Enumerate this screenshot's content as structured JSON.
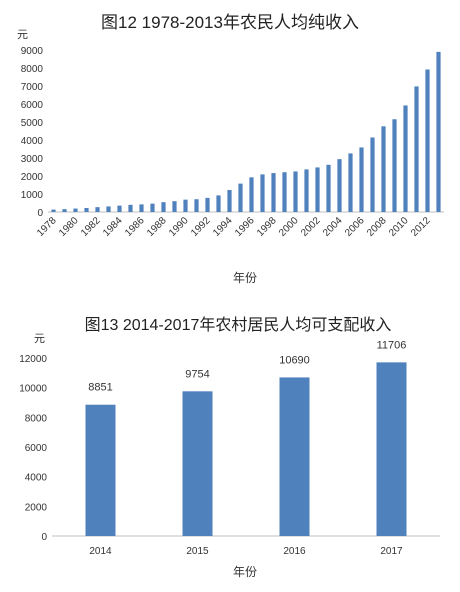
{
  "charts": [
    {
      "title": "图12  1978-2013年农民人均纯收入",
      "unit_label": "元",
      "xlabel": "年份"
    },
    {
      "title": "图13  2014-2017年农村居民人均可支配收入",
      "unit_label": "元",
      "xlabel": "年份"
    }
  ],
  "chart_data": [
    {
      "type": "bar",
      "title": "图12  1978-2013年农民人均纯收入",
      "ylabel": "元",
      "xlabel": "年份",
      "ylim": [
        0,
        9000
      ],
      "yticks": [
        0,
        1000,
        2000,
        3000,
        4000,
        5000,
        6000,
        7000,
        8000,
        9000
      ],
      "grid": false,
      "bar_color": "#4F81BD",
      "x_tick_labels": [
        "1978",
        "1980",
        "1982",
        "1984",
        "1986",
        "1988",
        "1990",
        "1992",
        "1994",
        "1996",
        "1998",
        "2000",
        "2002",
        "2004",
        "2006",
        "2008",
        "2010",
        "2012"
      ],
      "categories": [
        "1978",
        "1979",
        "1980",
        "1981",
        "1982",
        "1983",
        "1984",
        "1985",
        "1986",
        "1987",
        "1988",
        "1989",
        "1990",
        "1991",
        "1992",
        "1993",
        "1994",
        "1995",
        "1996",
        "1997",
        "1998",
        "1999",
        "2000",
        "2001",
        "2002",
        "2003",
        "2004",
        "2005",
        "2006",
        "2007",
        "2008",
        "2009",
        "2010",
        "2011",
        "2012",
        "2013"
      ],
      "values": [
        134,
        160,
        191,
        223,
        270,
        310,
        355,
        398,
        424,
        463,
        545,
        602,
        686,
        709,
        784,
        922,
        1221,
        1578,
        1926,
        2090,
        2162,
        2210,
        2253,
        2366,
        2476,
        2622,
        2936,
        3255,
        3587,
        4140,
        4761,
        5153,
        5919,
        6977,
        7917,
        8896
      ]
    },
    {
      "type": "bar",
      "title": "图13  2014-2017年农村居民人均可支配收入",
      "ylabel": "元",
      "xlabel": "年份",
      "ylim": [
        0,
        12000
      ],
      "yticks": [
        0,
        2000,
        4000,
        6000,
        8000,
        10000,
        12000
      ],
      "grid": false,
      "bar_color": "#4F81BD",
      "categories": [
        "2014",
        "2015",
        "2016",
        "2017"
      ],
      "values": [
        8851,
        9754,
        10690,
        11706
      ],
      "data_labels": [
        "8851",
        "9754",
        "10690",
        "11706"
      ]
    }
  ]
}
